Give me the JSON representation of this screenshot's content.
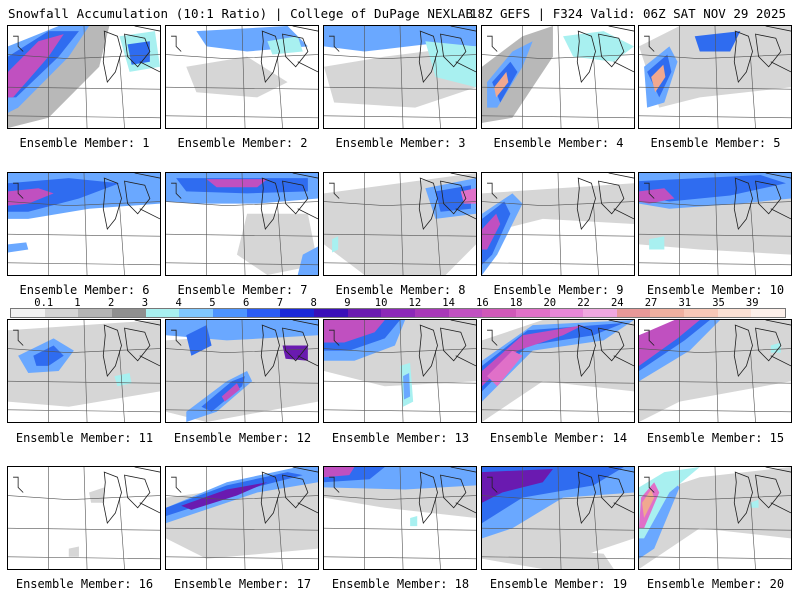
{
  "header": {
    "left_title": "Snowfall Accumulation (10:1 Ratio) | College of DuPage NEXLAB",
    "right_title": "18Z GEFS | F324 Valid: 06Z SAT NOV 29 2025"
  },
  "color_scale": {
    "labels": [
      "0.1",
      "1",
      "2",
      "3",
      "4",
      "5",
      "6",
      "7",
      "8",
      "9",
      "10",
      "12",
      "14",
      "16",
      "18",
      "20",
      "22",
      "24",
      "27",
      "31",
      "35",
      "39"
    ],
    "colors": [
      "#f2f2f2",
      "#d4d4d4",
      "#b4b4b4",
      "#8f8f8f",
      "#a8f0f0",
      "#80c8ff",
      "#4d94ff",
      "#2a5cf5",
      "#1a28d8",
      "#3a10b8",
      "#6a1ab0",
      "#8c28b8",
      "#a838b8",
      "#c050c0",
      "#d058b8",
      "#e070c8",
      "#e888d8",
      "#f0a8e0",
      "#e89898",
      "#f0b0a0",
      "#f8c8b8",
      "#fbe0d4",
      "#fdf0ea"
    ]
  },
  "members": [
    {
      "label": "Ensemble Member: 1"
    },
    {
      "label": "Ensemble Member: 2"
    },
    {
      "label": "Ensemble Member: 3"
    },
    {
      "label": "Ensemble Member: 4"
    },
    {
      "label": "Ensemble Member: 5"
    },
    {
      "label": "Ensemble Member: 6"
    },
    {
      "label": "Ensemble Member: 7"
    },
    {
      "label": "Ensemble Member: 8"
    },
    {
      "label": "Ensemble Member: 9"
    },
    {
      "label": "Ensemble Member: 10"
    },
    {
      "label": "Ensemble Member: 11"
    },
    {
      "label": "Ensemble Member: 12"
    },
    {
      "label": "Ensemble Member: 13"
    },
    {
      "label": "Ensemble Member: 14"
    },
    {
      "label": "Ensemble Member: 15"
    },
    {
      "label": "Ensemble Member: 16"
    },
    {
      "label": "Ensemble Member: 17"
    },
    {
      "label": "Ensemble Member: 18"
    },
    {
      "label": "Ensemble Member: 19"
    },
    {
      "label": "Ensemble Member: 20"
    }
  ]
}
